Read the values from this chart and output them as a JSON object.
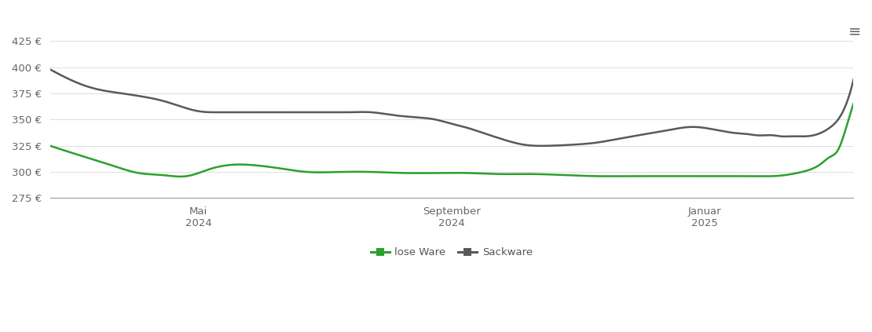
{
  "background_color": "#ffffff",
  "grid_color": "#dddddd",
  "legend_labels": [
    "lose Ware",
    "Sackware"
  ],
  "legend_colors": [
    "#2ca02c",
    "#595959"
  ],
  "ylim": [
    275,
    432
  ],
  "yticks": [
    275,
    300,
    325,
    350,
    375,
    400,
    425
  ],
  "ytick_labels": [
    "275 €",
    "300 €",
    "325 €",
    "350 €",
    "375 €",
    "400 €",
    "425 €"
  ],
  "xlim": [
    0,
    1
  ],
  "x_tick_positions": [
    0.185,
    0.5,
    0.815
  ],
  "x_tick_labels": [
    "Mai\n2024",
    "September\n2024",
    "Januar\n2025"
  ],
  "lose_ware_x": [
    0.0,
    0.02,
    0.045,
    0.07,
    0.09,
    0.11,
    0.14,
    0.17,
    0.2,
    0.23,
    0.26,
    0.29,
    0.32,
    0.36,
    0.4,
    0.44,
    0.48,
    0.52,
    0.56,
    0.6,
    0.64,
    0.68,
    0.72,
    0.76,
    0.8,
    0.83,
    0.86,
    0.88,
    0.9,
    0.915,
    0.93,
    0.945,
    0.96,
    0.97,
    0.98,
    0.99,
    1.0
  ],
  "lose_ware_y": [
    325,
    320,
    314,
    308,
    303,
    299,
    297,
    296,
    303,
    307,
    306,
    303,
    300,
    300,
    300,
    299,
    299,
    299,
    298,
    298,
    297,
    296,
    296,
    296,
    296,
    296,
    296,
    296,
    296,
    297,
    299,
    302,
    308,
    314,
    320,
    340,
    365
  ],
  "sackware_x": [
    0.0,
    0.02,
    0.045,
    0.065,
    0.09,
    0.115,
    0.14,
    0.165,
    0.185,
    0.21,
    0.24,
    0.27,
    0.3,
    0.34,
    0.37,
    0.4,
    0.43,
    0.46,
    0.48,
    0.5,
    0.52,
    0.54,
    0.56,
    0.59,
    0.62,
    0.65,
    0.68,
    0.71,
    0.74,
    0.77,
    0.8,
    0.83,
    0.855,
    0.87,
    0.88,
    0.89,
    0.9,
    0.91,
    0.92,
    0.93,
    0.94,
    0.955,
    0.97,
    0.985,
    1.0
  ],
  "sackware_y": [
    398,
    390,
    382,
    378,
    375,
    372,
    368,
    362,
    358,
    357,
    357,
    357,
    357,
    357,
    357,
    357,
    354,
    352,
    350,
    346,
    342,
    337,
    332,
    326,
    325,
    326,
    328,
    332,
    336,
    340,
    343,
    340,
    337,
    336,
    335,
    335,
    335,
    334,
    334,
    334,
    334,
    336,
    342,
    355,
    388
  ]
}
